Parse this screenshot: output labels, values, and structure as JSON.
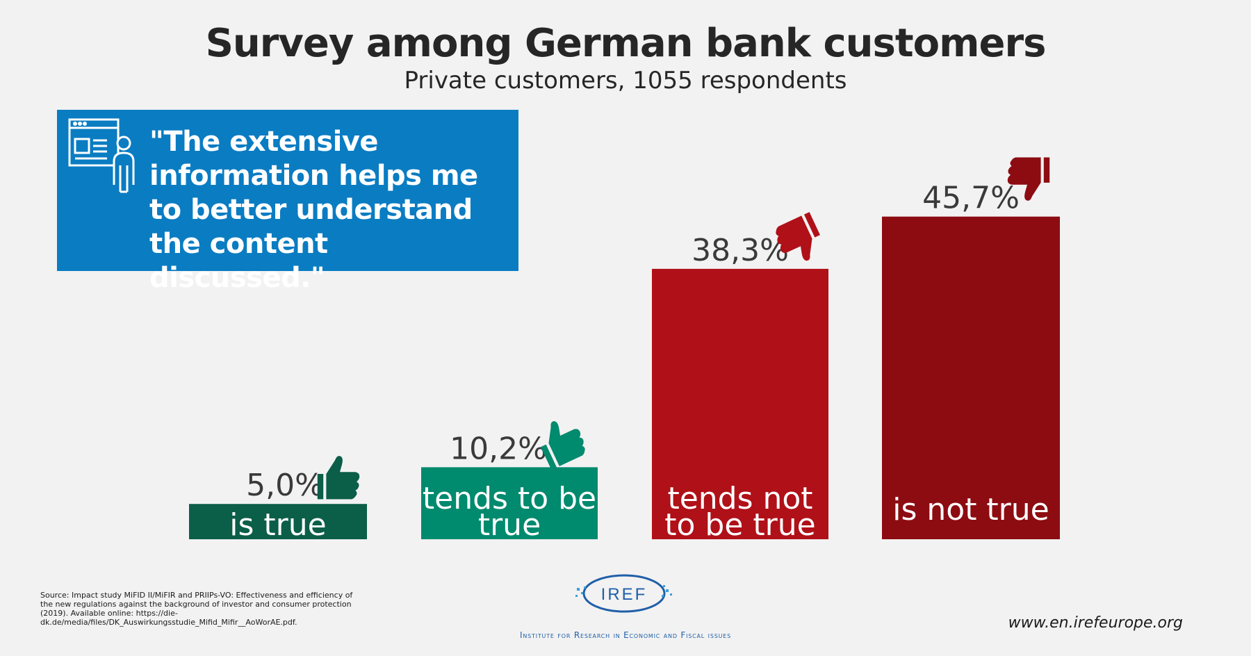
{
  "title": "Survey among German bank customers",
  "subtitle": "Private customers, 1055 respondents",
  "quote": "\"The extensive information helps me to better understand the content discussed.\"",
  "chart_data": {
    "type": "bar",
    "categories": [
      "is true",
      "tends to be true",
      "tends not to be true",
      "is not true"
    ],
    "category_lines": [
      [
        "is true"
      ],
      [
        "tends to be",
        "true"
      ],
      [
        "tends not",
        "to be true"
      ],
      [
        "is not true"
      ]
    ],
    "values": [
      5.0,
      10.2,
      38.3,
      45.7
    ],
    "value_labels": [
      "5,0%",
      "10,2%",
      "38,3%",
      "45,7%"
    ],
    "colors": [
      "#0b5e48",
      "#008a6e",
      "#b01018",
      "#8c0c12"
    ],
    "icons": [
      "thumbs-up",
      "thumbs-up",
      "thumbs-down",
      "thumbs-down"
    ],
    "ylim": [
      0,
      50
    ],
    "xlabel": "",
    "ylabel": ""
  },
  "source": "Source: Impact study MiFID II/MiFIR and PRIIPs-VO: Effectiveness and efficiency of the new regulations against the background of investor and consumer protection (2019). Available online: https://die-dk.de/media/files/DK_Auswirkungsstudie_Mifid_Mifir__AoWorAE.pdf.",
  "logo_text": "IREF",
  "institute": "Institute for Research in Economic and Fiscal issues",
  "website": "www.en.irefeurope.org"
}
